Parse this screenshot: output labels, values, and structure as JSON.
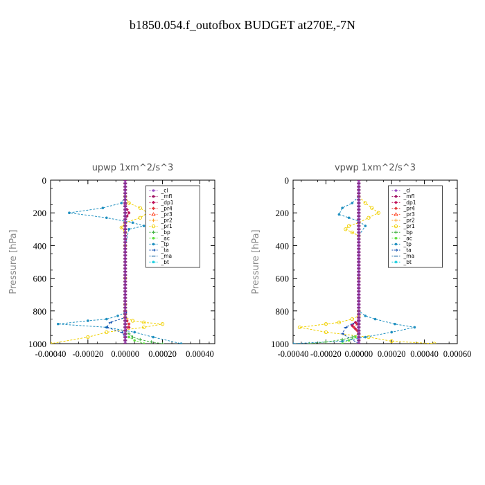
{
  "figure": {
    "title": "b1850.054.f_outofbox  BUDGET at270E,-7N"
  },
  "legend_entries": [
    {
      "name": "_cl",
      "color": "#9b4fc4",
      "marker": "dot"
    },
    {
      "name": "_mfl",
      "color": "#a01060",
      "marker": "dot"
    },
    {
      "name": "_dp1",
      "color": "#c0105a",
      "marker": "diamond"
    },
    {
      "name": "_pr4",
      "color": "#e03c3c",
      "marker": "diamond"
    },
    {
      "name": "_pr3",
      "color": "#ff5a3c",
      "marker": "triangle"
    },
    {
      "name": "_pr2",
      "color": "#ffa020",
      "marker": "plus"
    },
    {
      "name": "_pr1",
      "color": "#f0d000",
      "marker": "circle"
    },
    {
      "name": "_bp",
      "color": "#40b040",
      "marker": "plus"
    },
    {
      "name": "_ac",
      "color": "#60e040",
      "marker": "dot"
    },
    {
      "name": "_tp",
      "color": "#2090c0",
      "marker": "dot"
    },
    {
      "name": "_ta",
      "color": "#1050b0",
      "marker": "arrow"
    },
    {
      "name": "_ma",
      "color": "#1060a0",
      "marker": "dash"
    },
    {
      "name": "_bt",
      "color": "#20d0e0",
      "marker": "dot"
    }
  ],
  "chart_data": [
    {
      "type": "line",
      "title": "upwp   1xm^2/s^3",
      "xlabel": "",
      "ylabel": "Pressure [hPa]",
      "xlim": [
        -0.0004,
        0.00048
      ],
      "ylim": [
        1000,
        0
      ],
      "xticks": [
        -0.0004,
        -0.0002,
        0.0,
        0.0002,
        0.0004
      ],
      "xtick_labels": [
        "-0.00040",
        "-0.00020",
        "0.00000",
        "0.00020",
        "0.00040"
      ],
      "yticks": [
        0,
        200,
        400,
        600,
        800,
        1000
      ],
      "ytick_labels": [
        "0",
        "200",
        "400",
        "600",
        "800",
        "1000"
      ],
      "legend": "top-right",
      "series": [
        {
          "name": "_pr1",
          "color": "#f0d000",
          "x": [
            0,
            2e-05,
            8e-05,
            0.00012,
            8e-05,
            0,
            -2e-05,
            0,
            0,
            0,
            0,
            0,
            0,
            0,
            4e-05,
            0.0001,
            0.0002,
            0.0001,
            -0.0001,
            -0.0002,
            -0.0004
          ],
          "y": [
            100,
            140,
            170,
            200,
            230,
            260,
            290,
            320,
            400,
            600,
            760,
            800,
            820,
            840,
            860,
            870,
            880,
            900,
            930,
            960,
            1000
          ]
        },
        {
          "name": "_tp",
          "color": "#2090c0",
          "x": [
            0,
            -2e-05,
            -0.00012,
            -0.0003,
            -0.0001,
            4e-05,
            0.0001,
            2e-05,
            0,
            0,
            0,
            0,
            -4e-05,
            -0.0001,
            -0.0002,
            -0.00036,
            -0.0001,
            5e-05,
            0.00015,
            0.0003
          ],
          "y": [
            100,
            140,
            170,
            200,
            230,
            260,
            280,
            300,
            400,
            600,
            780,
            810,
            830,
            850,
            860,
            880,
            900,
            930,
            960,
            1000
          ]
        },
        {
          "name": "_ta",
          "color": "#1050b0",
          "x": [
            0,
            0,
            -8e-05,
            -0.0001,
            -2e-05,
            0,
            0
          ],
          "y": [
            810,
            840,
            870,
            900,
            930,
            960,
            1000
          ]
        },
        {
          "name": "_bp",
          "color": "#40b040",
          "x": [
            0,
            0,
            2e-05,
            4e-05,
            8e-05,
            0.00014,
            0.0002
          ],
          "y": [
            880,
            920,
            940,
            960,
            975,
            990,
            1000
          ]
        },
        {
          "name": "_ac",
          "color": "#60e040",
          "x": [
            0,
            2e-05,
            5e-05,
            0.0001
          ],
          "y": [
            940,
            960,
            980,
            1000
          ]
        },
        {
          "name": "_dp1",
          "color": "#c0105a",
          "x": [
            0,
            1e-05,
            2e-05,
            1e-05,
            0,
            0,
            0,
            2e-05,
            2e-05,
            0
          ],
          "y": [
            150,
            180,
            200,
            220,
            240,
            600,
            860,
            880,
            900,
            920
          ]
        },
        {
          "name": "_pr4",
          "color": "#e03c3c",
          "x": [
            0,
            1e-05,
            2e-05,
            1e-05,
            0
          ],
          "y": [
            840,
            860,
            880,
            900,
            920
          ]
        },
        {
          "name": "_mfl",
          "color": "#a01060",
          "x": [
            0,
            0
          ],
          "y": [
            0,
            1000
          ]
        },
        {
          "name": "_cl",
          "color": "#9b4fc4",
          "x": [
            0,
            0
          ],
          "y": [
            0,
            1000
          ]
        }
      ]
    },
    {
      "type": "line",
      "title": "vpwp   1xm^2/s^3",
      "xlabel": "",
      "ylabel": "Pressure [hPa]",
      "xlim": [
        -0.0004,
        0.0006
      ],
      "ylim": [
        1000,
        0
      ],
      "xticks": [
        -0.0004,
        -0.0002,
        0.0,
        0.0002,
        0.0004,
        0.0006
      ],
      "xtick_labels": [
        "-0.00040",
        "-0.00020",
        "0.00000",
        "0.00020",
        "0.00040",
        "0.00060"
      ],
      "yticks": [
        0,
        200,
        400,
        600,
        800,
        1000
      ],
      "ytick_labels": [
        "0",
        "200",
        "400",
        "600",
        "800",
        "1000"
      ],
      "legend": "top-right",
      "series": [
        {
          "name": "_pr1",
          "color": "#f0d000",
          "x": [
            0,
            4e-05,
            8e-05,
            0.00012,
            6e-05,
            0,
            -6e-05,
            -8e-05,
            -4e-05,
            0,
            0,
            0,
            0,
            -4e-05,
            -0.00012,
            -0.0002,
            -0.00036,
            -0.0002,
            6e-05,
            0.0002,
            0.00046
          ],
          "y": [
            100,
            140,
            170,
            200,
            230,
            260,
            280,
            300,
            320,
            340,
            600,
            800,
            830,
            850,
            870,
            880,
            900,
            930,
            960,
            985,
            1000
          ]
        },
        {
          "name": "_tp",
          "color": "#2090c0",
          "x": [
            0,
            -4e-05,
            -0.0001,
            -0.00012,
            -6e-05,
            0,
            4e-05,
            0,
            0,
            0,
            4e-05,
            0.0001,
            0.00022,
            0.00034,
            0.0002,
            4e-05,
            -0.0001,
            -0.0004
          ],
          "y": [
            100,
            140,
            170,
            210,
            230,
            250,
            280,
            340,
            600,
            800,
            830,
            850,
            880,
            900,
            930,
            960,
            985,
            1000
          ]
        },
        {
          "name": "_ta",
          "color": "#1050b0",
          "x": [
            0,
            0,
            -4e-05,
            -8e-05,
            -0.0001,
            0
          ],
          "y": [
            820,
            860,
            880,
            900,
            940,
            1000
          ]
        },
        {
          "name": "_bp",
          "color": "#40b040",
          "x": [
            0,
            0,
            -4e-05,
            -0.0001,
            -0.0002,
            -0.0003
          ],
          "y": [
            900,
            940,
            960,
            975,
            990,
            1000
          ]
        },
        {
          "name": "_ac",
          "color": "#60e040",
          "x": [
            0,
            -2e-05,
            -6e-05,
            -0.0001
          ],
          "y": [
            940,
            960,
            980,
            1000
          ]
        },
        {
          "name": "_dp1",
          "color": "#c0105a",
          "x": [
            0,
            -2e-05,
            -4e-05,
            -2e-05,
            0
          ],
          "y": [
            850,
            870,
            890,
            910,
            930
          ]
        },
        {
          "name": "_pr4",
          "color": "#e03c3c",
          "x": [
            0,
            -1e-05,
            -3e-05,
            -1e-05,
            0
          ],
          "y": [
            860,
            880,
            900,
            920,
            940
          ]
        },
        {
          "name": "_mfl",
          "color": "#a01060",
          "x": [
            0,
            0
          ],
          "y": [
            0,
            1000
          ]
        },
        {
          "name": "_cl",
          "color": "#9b4fc4",
          "x": [
            0,
            0
          ],
          "y": [
            0,
            1000
          ]
        }
      ]
    }
  ]
}
